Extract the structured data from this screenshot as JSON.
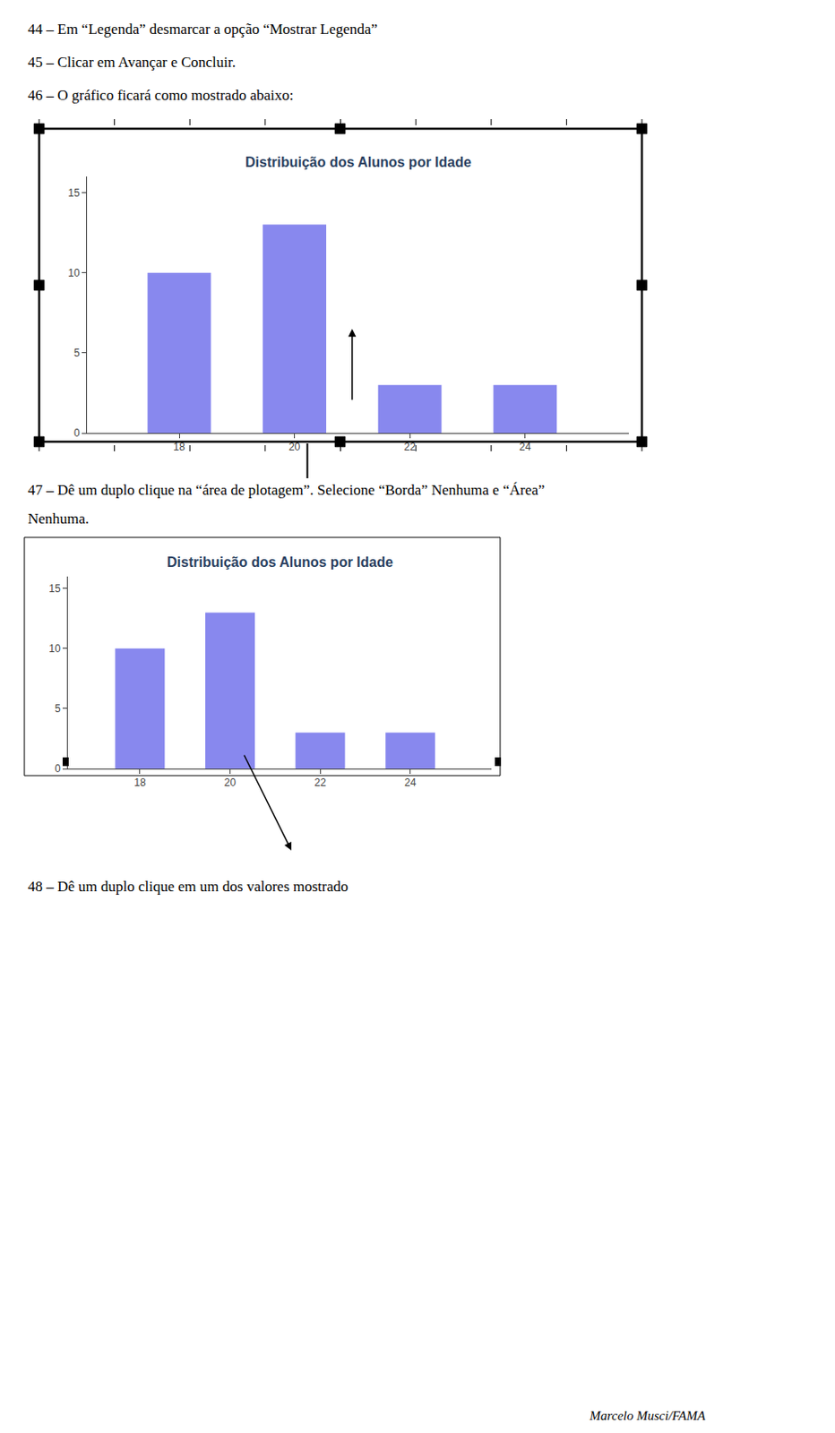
{
  "chart_data": [
    {
      "type": "bar",
      "title": "Distribuição dos Alunos por Idade",
      "x": [
        18,
        20,
        22,
        24
      ],
      "values": [
        10,
        13,
        3,
        3
      ],
      "color": "#8888ee",
      "xlim": [
        16.4,
        25.8
      ],
      "xticks": [
        18,
        20,
        22,
        24
      ],
      "ylim": [
        0,
        16
      ],
      "yticks": [
        0,
        5,
        10,
        15
      ],
      "grid": false,
      "annotations": [
        "44 – Em “Legenda” desmarcar a opção “Mostrar Legenda”",
        "45 – Clicar em Avançar e Concluir.",
        "46 – O gráfico ficará como mostrado abaixo:"
      ]
    },
    {
      "type": "bar",
      "title": "Distribuição dos Alunos por Idade",
      "x": [
        18,
        20,
        22,
        24
      ],
      "values": [
        10,
        13,
        3,
        3
      ],
      "color": "#8888ee",
      "xlim": [
        16.4,
        25.8
      ],
      "xticks": [
        18,
        20,
        22,
        24
      ],
      "ylim": [
        0,
        16
      ],
      "yticks": [
        0,
        5,
        10,
        15
      ],
      "grid": false,
      "annotations": [
        "47 – Dê um duplo clique na “área de plotagem”. Selecione “Borda” Nenhuma e “Área”",
        "Nenhuma.",
        "48 – Dê um duplo clique em um dos valores mostrado",
        "Marcelo Musci/FAMA"
      ]
    }
  ]
}
